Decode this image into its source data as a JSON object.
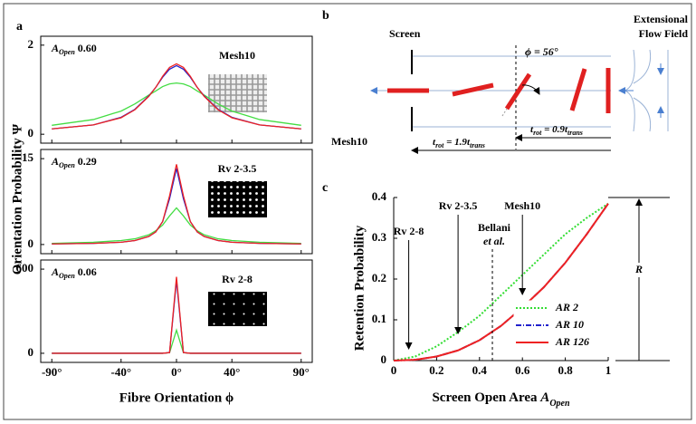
{
  "panel_labels": [
    "a",
    "b",
    "c"
  ],
  "panel_a": {
    "ylabel": "Orientation Probability Ψ",
    "xlabel": "Fibre Orientation ϕ"
  },
  "chart_data": [
    {
      "type": "line",
      "xlim": [
        -98,
        98
      ],
      "ylim": [
        -0.2,
        2.2
      ],
      "yticks": [
        0,
        2
      ],
      "annotation": {
        "symbol": "A",
        "subscript": "Open",
        "value": "0.60"
      },
      "screen": "Mesh10",
      "x": [
        -90,
        -60,
        -40,
        -30,
        -20,
        -15,
        -10,
        -5,
        0,
        5,
        10,
        15,
        20,
        30,
        40,
        60,
        90
      ],
      "series": [
        {
          "color": "#44dd44",
          "values": [
            0.2,
            0.33,
            0.52,
            0.68,
            0.88,
            0.97,
            1.07,
            1.13,
            1.15,
            1.13,
            1.07,
            0.97,
            0.88,
            0.68,
            0.52,
            0.33,
            0.2
          ]
        },
        {
          "color": "#2222cc",
          "values": [
            0.12,
            0.21,
            0.38,
            0.56,
            0.86,
            1.05,
            1.28,
            1.46,
            1.54,
            1.46,
            1.28,
            1.05,
            0.86,
            0.56,
            0.38,
            0.21,
            0.12
          ]
        },
        {
          "color": "#ee2222",
          "values": [
            0.12,
            0.21,
            0.37,
            0.55,
            0.85,
            1.05,
            1.3,
            1.5,
            1.58,
            1.5,
            1.3,
            1.05,
            0.85,
            0.55,
            0.37,
            0.21,
            0.12
          ]
        }
      ]
    },
    {
      "type": "line",
      "xlim": [
        -98,
        98
      ],
      "ylim": [
        -1.6,
        16.6
      ],
      "yticks": [
        0,
        15
      ],
      "annotation": {
        "symbol": "A",
        "subscript": "Open",
        "value": "0.29"
      },
      "screen": "Rv 2-3.5",
      "x": [
        -90,
        -60,
        -40,
        -30,
        -20,
        -15,
        -10,
        -5,
        0,
        5,
        10,
        15,
        20,
        30,
        40,
        60,
        90
      ],
      "series": [
        {
          "color": "#44dd44",
          "values": [
            0.2,
            0.4,
            0.7,
            1,
            1.7,
            2.4,
            3.4,
            5,
            6.4,
            5,
            3.4,
            2.4,
            1.7,
            1,
            0.7,
            0.4,
            0.2
          ]
        },
        {
          "color": "#2222cc",
          "values": [
            0.1,
            0.2,
            0.4,
            0.7,
            1.4,
            2.2,
            4,
            8,
            13.3,
            8,
            4,
            2.2,
            1.4,
            0.7,
            0.4,
            0.2,
            0.1
          ]
        },
        {
          "color": "#ee2222",
          "values": [
            0.1,
            0.2,
            0.4,
            0.7,
            1.4,
            2.2,
            4,
            8.5,
            14,
            8.5,
            4,
            2.2,
            1.4,
            0.7,
            0.4,
            0.2,
            0.1
          ]
        }
      ]
    },
    {
      "type": "line",
      "xlim": [
        -98,
        98
      ],
      "ylim": [
        -65,
        665
      ],
      "yticks": [
        0,
        600
      ],
      "xticks": [
        {
          "value": -90,
          "label": "-90°"
        },
        {
          "value": -40,
          "label": "-40°"
        },
        {
          "value": 0,
          "label": "0°"
        },
        {
          "value": 40,
          "label": "40°"
        },
        {
          "value": 90,
          "label": "90°"
        }
      ],
      "annotation": {
        "symbol": "A",
        "subscript": "Open",
        "value": "0.06"
      },
      "screen": "Rv 2-8",
      "x": [
        -90,
        -60,
        -40,
        -30,
        -20,
        -15,
        -10,
        -5,
        0,
        5,
        10,
        15,
        20,
        30,
        40,
        60,
        90
      ],
      "series": [
        {
          "color": "#44dd44",
          "values": [
            0,
            0,
            0,
            0,
            0,
            0,
            0,
            4,
            165,
            4,
            0,
            0,
            0,
            0,
            0,
            0,
            0
          ]
        },
        {
          "color": "#2222cc",
          "values": [
            0,
            0,
            0,
            0,
            0,
            0,
            0,
            5,
            520,
            5,
            0,
            0,
            0,
            0,
            0,
            0,
            0
          ]
        },
        {
          "color": "#ee2222",
          "values": [
            0,
            0,
            0,
            0,
            0,
            0,
            0,
            5,
            545,
            5,
            0,
            0,
            0,
            0,
            0,
            0,
            0
          ]
        }
      ]
    },
    {
      "type": "line",
      "ylabel": "Retention Probability",
      "xlabel": {
        "text": "Screen Open Area ",
        "symbol": "A",
        "subscript": "Open"
      },
      "xlim": [
        0,
        1
      ],
      "ylim": [
        0,
        0.4
      ],
      "xticks": [
        0,
        0.2,
        0.4,
        0.6,
        0.8,
        1
      ],
      "yticks": [
        0,
        0.1,
        0.2,
        0.3,
        0.4
      ],
      "x": [
        0,
        0.1,
        0.2,
        0.3,
        0.4,
        0.5,
        0.6,
        0.7,
        0.8,
        0.9,
        1
      ],
      "series": [
        {
          "name": "AR 2",
          "color": "#33dd33",
          "style": "dotted",
          "values": [
            0,
            0.01,
            0.035,
            0.07,
            0.11,
            0.16,
            0.21,
            0.26,
            0.31,
            0.35,
            0.385
          ]
        },
        {
          "name": "AR 10",
          "color": "#2222cc",
          "style": "dashdot",
          "values": [
            0,
            0.002,
            0.01,
            0.025,
            0.05,
            0.085,
            0.13,
            0.18,
            0.24,
            0.31,
            0.385
          ]
        },
        {
          "name": "AR 126",
          "color": "#ee2222",
          "style": "solid",
          "values": [
            0,
            0.002,
            0.01,
            0.025,
            0.05,
            0.085,
            0.13,
            0.18,
            0.24,
            0.31,
            0.385
          ]
        }
      ],
      "annotations": [
        {
          "text": "Rv 2-8",
          "x": 0.07
        },
        {
          "text": "Rv 2-3.5",
          "x": 0.3
        },
        {
          "text": "Mesh10",
          "x": 0.6
        }
      ],
      "reference": {
        "text": [
          "Bellani",
          "et al."
        ],
        "x": 0.46
      },
      "bracket": "R"
    }
  ],
  "diagram": {
    "screen": "Screen",
    "flow": [
      "Extensional",
      "Flow Field"
    ],
    "angle": "ϕ = 56°",
    "mesh": "Mesh10",
    "t_slow": [
      "t",
      "rot",
      " = 1.9",
      "t",
      "trans"
    ],
    "t_fast": [
      "t",
      "rot",
      " = 0.9",
      "t",
      "trans"
    ]
  }
}
